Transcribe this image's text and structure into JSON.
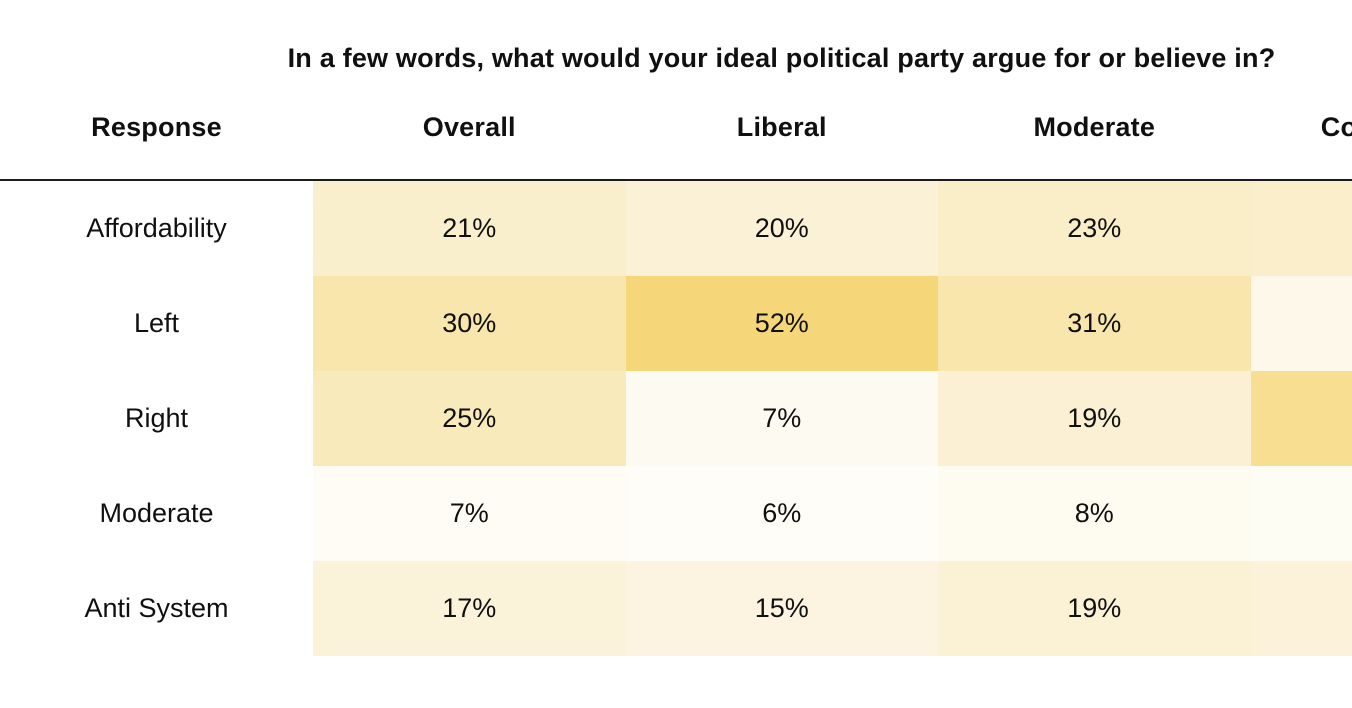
{
  "title": "In a few words, what would your ideal political party argue for or believe in?",
  "colors": {
    "background": "#ffffff",
    "text": "#101010",
    "divider": "#1b1b1b",
    "heat_max": "#f5d678",
    "heat_min": "#fefdf7"
  },
  "table": {
    "columns": [
      "Response",
      "Overall",
      "Liberal",
      "Moderate",
      "Conservative"
    ],
    "rows": [
      {
        "label": "Affordability",
        "cells": [
          {
            "text": "21%",
            "bg": "#faefcd"
          },
          {
            "text": "20%",
            "bg": "#fbf1d7"
          },
          {
            "text": "23%",
            "bg": "#faeec8"
          },
          {
            "text": "",
            "bg": "#faeecb"
          }
        ]
      },
      {
        "label": "Left",
        "cells": [
          {
            "text": "30%",
            "bg": "#f8e6ac"
          },
          {
            "text": "52%",
            "bg": "#f5d678"
          },
          {
            "text": "31%",
            "bg": "#f9e6ad"
          },
          {
            "text": "",
            "bg": "#fdf8ea"
          }
        ]
      },
      {
        "label": "Right",
        "cells": [
          {
            "text": "25%",
            "bg": "#f9eabb"
          },
          {
            "text": "7%",
            "bg": "#fdfaf1"
          },
          {
            "text": "19%",
            "bg": "#fbf0d3"
          },
          {
            "text": "",
            "bg": "#f8de90"
          }
        ]
      },
      {
        "label": "Moderate",
        "cells": [
          {
            "text": "7%",
            "bg": "#fefcf4"
          },
          {
            "text": "6%",
            "bg": "#fefdf7"
          },
          {
            "text": "8%",
            "bg": "#fefbf1"
          },
          {
            "text": "",
            "bg": "#fefdf3"
          }
        ]
      },
      {
        "label": "Anti System",
        "cells": [
          {
            "text": "17%",
            "bg": "#fbf2da"
          },
          {
            "text": "15%",
            "bg": "#fcf4e1"
          },
          {
            "text": "19%",
            "bg": "#fbf1d5"
          },
          {
            "text": "",
            "bg": "#fbf2d9"
          }
        ]
      }
    ]
  },
  "chart_data": {
    "type": "heatmap",
    "title": "In a few words, what would your ideal political party argue for or believe in?",
    "x_categories": [
      "Overall",
      "Liberal",
      "Moderate",
      "Conservative"
    ],
    "y_categories": [
      "Affordability",
      "Left",
      "Right",
      "Moderate",
      "Anti System"
    ],
    "values_pct": [
      [
        21,
        20,
        23,
        null
      ],
      [
        30,
        52,
        31,
        null
      ],
      [
        25,
        7,
        19,
        null
      ],
      [
        7,
        6,
        8,
        null
      ],
      [
        17,
        15,
        19,
        null
      ]
    ],
    "value_unit": "%",
    "color_scale": {
      "low": "#fefdf7",
      "high": "#f5d678"
    },
    "notes": "Rightmost column (Conservative) is clipped at the image edge; its numeric labels are not visible, only its cell shading.",
    "legend": "none",
    "grid": "off"
  }
}
